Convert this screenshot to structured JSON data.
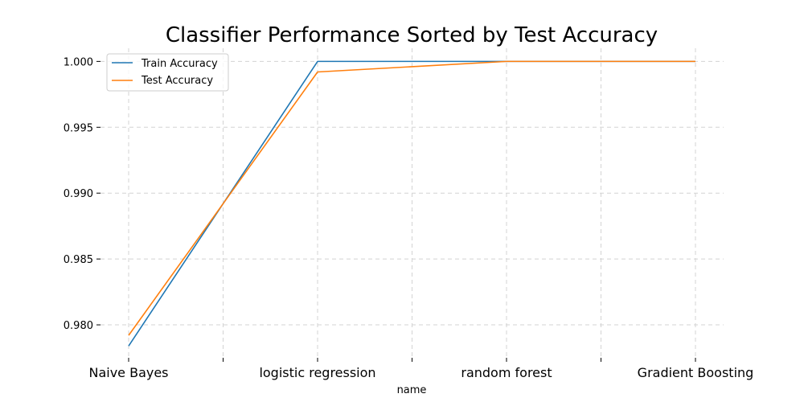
{
  "chart_data": {
    "type": "line",
    "title": "Classifier Performance Sorted by Test Accuracy",
    "xlabel": "name",
    "ylabel": "",
    "categories": [
      "Naive Bayes",
      "",
      "logistic regression",
      "",
      "random forest",
      "",
      "Gradient Boosting"
    ],
    "series": [
      {
        "name": "Train Accuracy",
        "color": "#1f77b4",
        "values": [
          0.9784,
          0.9892,
          1.0,
          1.0,
          1.0,
          1.0,
          1.0
        ]
      },
      {
        "name": "Test Accuracy",
        "color": "#ff7f0e",
        "values": [
          0.9792,
          0.9892,
          0.9992,
          0.9996,
          1.0,
          1.0,
          1.0
        ]
      }
    ],
    "yticks": [
      "0.980",
      "0.985",
      "0.990",
      "0.995",
      "1.000"
    ],
    "ylim": [
      0.9775,
      1.001
    ],
    "grid": true,
    "legend_position": "top-left"
  }
}
